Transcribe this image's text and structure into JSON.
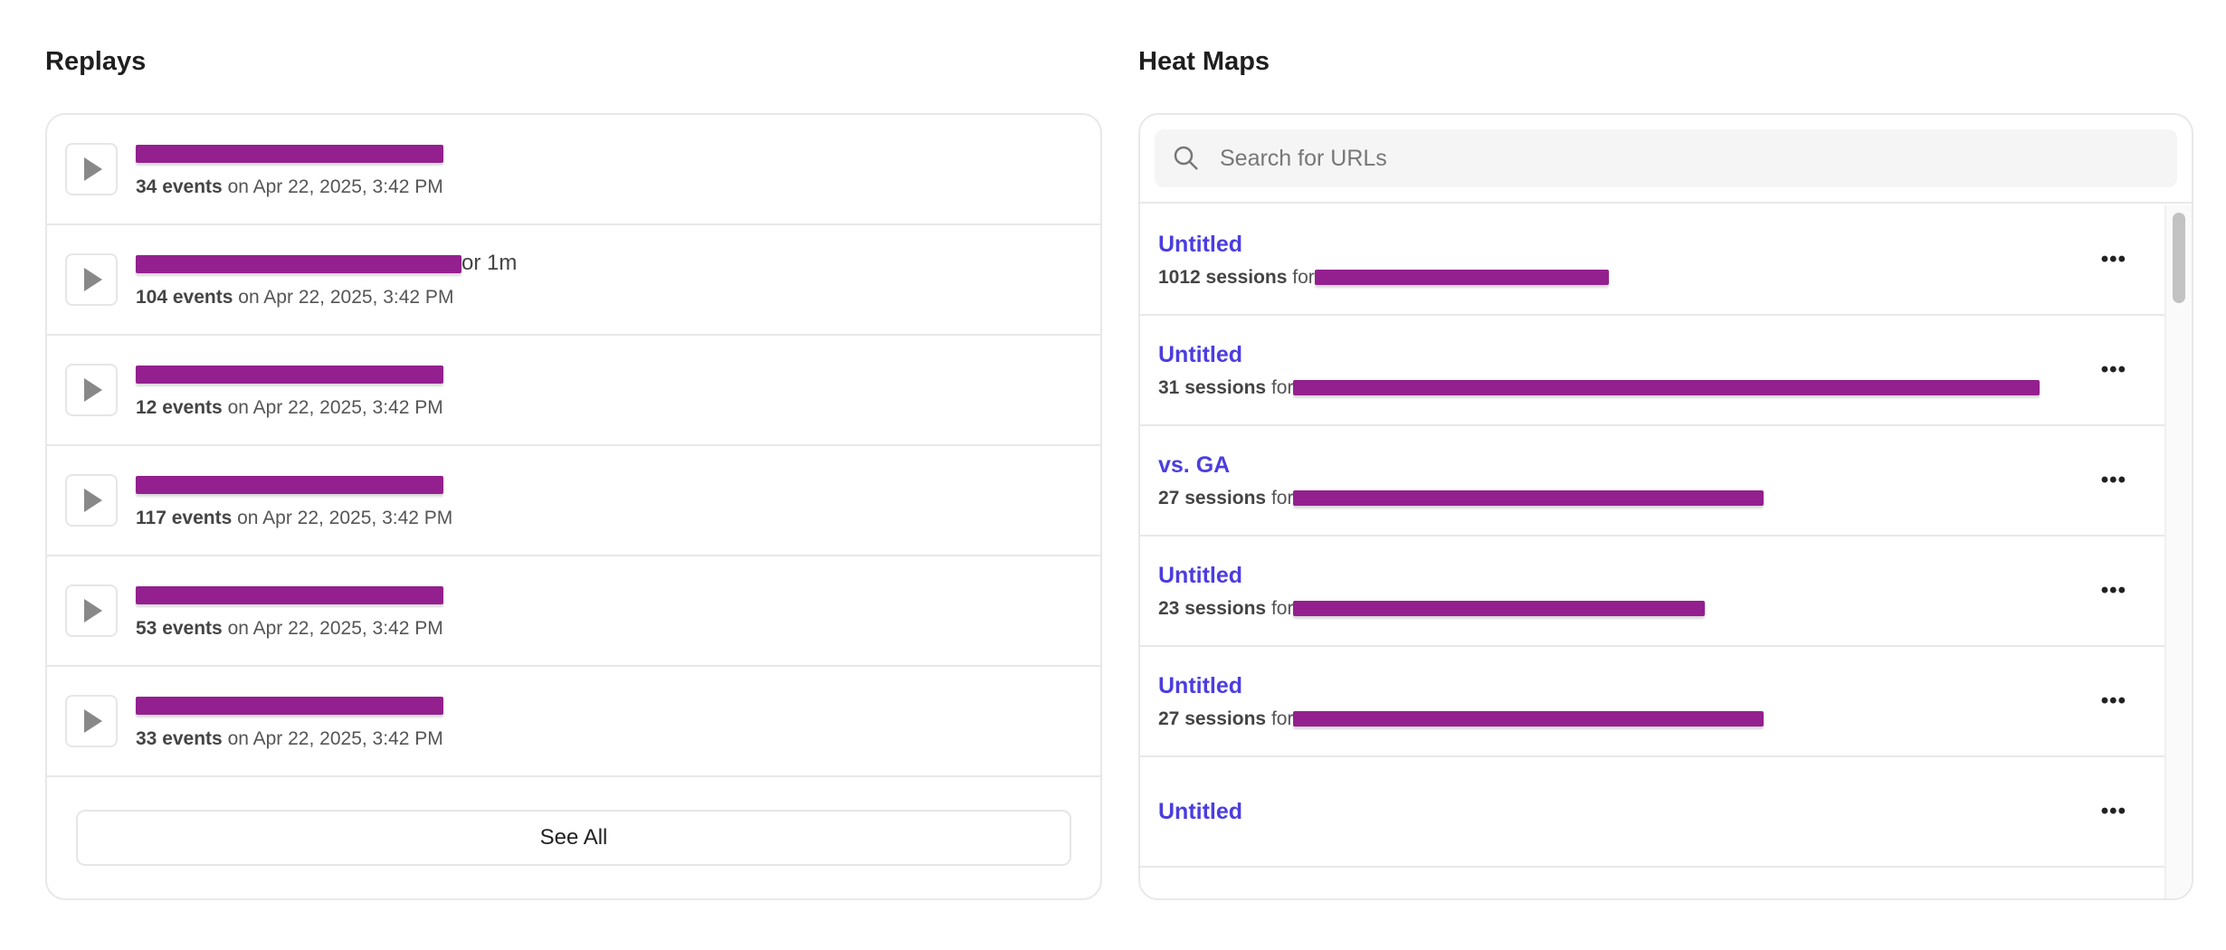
{
  "replays": {
    "title": "Replays",
    "items": [
      {
        "tail": "",
        "events": "34 events",
        "date": "on Apr 22, 2025, 3:42 PM"
      },
      {
        "tail": "or 1m",
        "events": "104 events",
        "date": "on Apr 22, 2025, 3:42 PM"
      },
      {
        "tail": "",
        "events": "12 events",
        "date": "on Apr 22, 2025, 3:42 PM"
      },
      {
        "tail": "",
        "events": "117 events",
        "date": "on Apr 22, 2025, 3:42 PM"
      },
      {
        "tail": "",
        "events": "53 events",
        "date": "on Apr 22, 2025, 3:42 PM"
      },
      {
        "tail": "",
        "events": "33 events",
        "date": "on Apr 22, 2025, 3:42 PM"
      }
    ],
    "see_all": "See All"
  },
  "heatmaps": {
    "title": "Heat Maps",
    "search_placeholder": "Search for URLs",
    "items": [
      {
        "title": "Untitled",
        "sessions": "1012 sessions",
        "for": "for"
      },
      {
        "title": "Untitled",
        "sessions": "31 sessions",
        "for": "for"
      },
      {
        "title": "vs. GA",
        "sessions": "27 sessions",
        "for": "for"
      },
      {
        "title": "Untitled",
        "sessions": "23 sessions",
        "for": "for"
      },
      {
        "title": "Untitled",
        "sessions": "27 sessions",
        "for": "for"
      },
      {
        "title": "Untitled",
        "sessions": "",
        "for": ""
      }
    ],
    "more_label": "•••"
  },
  "colors": {
    "accent": "#4b3de0",
    "redaction": "#93208e"
  }
}
